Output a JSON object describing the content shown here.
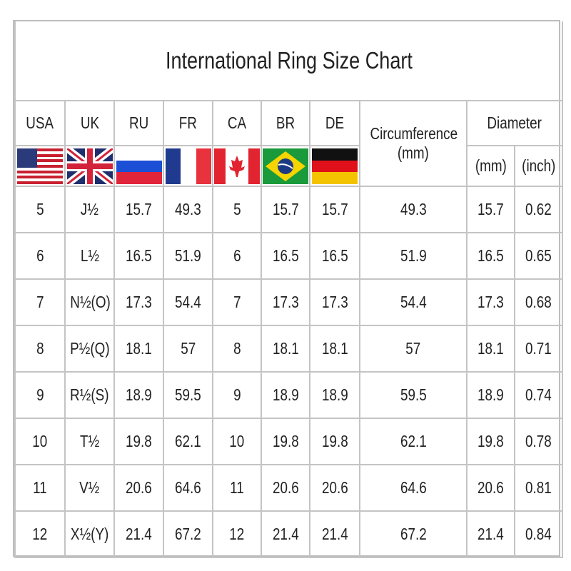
{
  "title": "International Ring Size Chart",
  "headers": {
    "countries": [
      "USA",
      "UK",
      "RU",
      "FR",
      "CA",
      "BR",
      "DE"
    ],
    "circumference": "Circumference",
    "circumference_unit": "(mm)",
    "diameter": "Diameter",
    "diameter_mm": "(mm)",
    "diameter_inch": "(inch)"
  },
  "flags": [
    "us-flag-icon",
    "uk-flag-icon",
    "russia-flag-icon",
    "france-flag-icon",
    "canada-flag-icon",
    "brazil-flag-icon",
    "germany-flag-icon"
  ],
  "rows": [
    [
      "5",
      "J½",
      "15.7",
      "49.3",
      "5",
      "15.7",
      "15.7",
      "49.3",
      "15.7",
      "0.62"
    ],
    [
      "6",
      "L½",
      "16.5",
      "51.9",
      "6",
      "16.5",
      "16.5",
      "51.9",
      "16.5",
      "0.65"
    ],
    [
      "7",
      "N½(O)",
      "17.3",
      "54.4",
      "7",
      "17.3",
      "17.3",
      "54.4",
      "17.3",
      "0.68"
    ],
    [
      "8",
      "P½(Q)",
      "18.1",
      "57",
      "8",
      "18.1",
      "18.1",
      "57",
      "18.1",
      "0.71"
    ],
    [
      "9",
      "R½(S)",
      "18.9",
      "59.5",
      "9",
      "18.9",
      "18.9",
      "59.5",
      "18.9",
      "0.74"
    ],
    [
      "10",
      "T½",
      "19.8",
      "62.1",
      "10",
      "19.8",
      "19.8",
      "62.1",
      "19.8",
      "0.78"
    ],
    [
      "11",
      "V½",
      "20.6",
      "64.6",
      "11",
      "20.6",
      "20.6",
      "64.6",
      "20.6",
      "0.81"
    ],
    [
      "12",
      "X½(Y)",
      "21.4",
      "67.2",
      "12",
      "21.4",
      "21.4",
      "67.2",
      "21.4",
      "0.84"
    ]
  ]
}
